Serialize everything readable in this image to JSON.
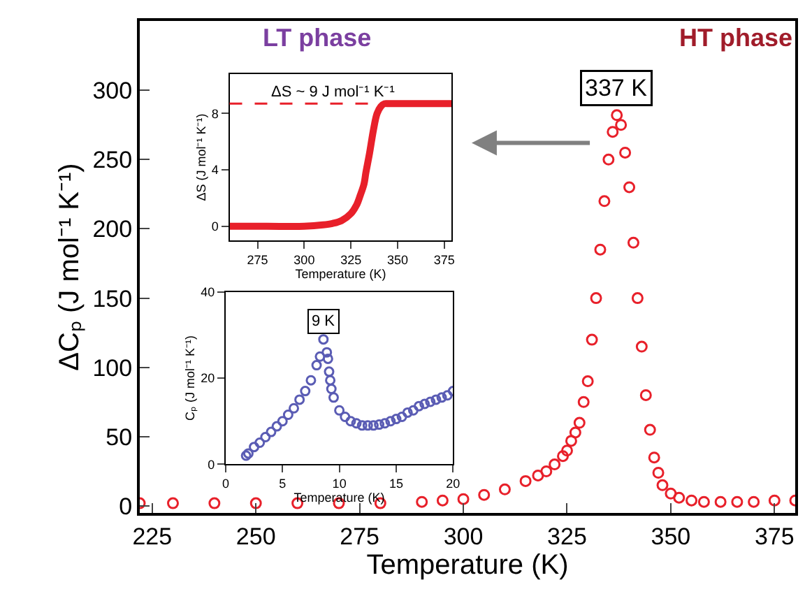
{
  "chart_data": [
    {
      "type": "scatter",
      "xlabel": "Temperature (K)",
      "ylabel": "ΔCₚ (J mol⁻¹ K⁻¹)",
      "annotations": [
        "LT phase",
        "HT phase",
        {
          "text": "337 K",
          "x": 337,
          "y": 282
        }
      ],
      "x": [
        222,
        230,
        240,
        250,
        260,
        270,
        280,
        290,
        295,
        300,
        305,
        310,
        315,
        318,
        320,
        322,
        324,
        325,
        326,
        327,
        328,
        329,
        330,
        331,
        332,
        333,
        334,
        335,
        336,
        337,
        338,
        339,
        340,
        341,
        342,
        343,
        344,
        345,
        346,
        347,
        348,
        350,
        352,
        355,
        358,
        362,
        366,
        370,
        375,
        380
      ],
      "series": [
        {
          "color": "#e8202a",
          "values": [
            2,
            2,
            2,
            2,
            2,
            2,
            2,
            3,
            4,
            5,
            8,
            12,
            18,
            22,
            25,
            30,
            36,
            40,
            47,
            53,
            60,
            75,
            90,
            120,
            150,
            185,
            220,
            250,
            270,
            282,
            275,
            255,
            230,
            190,
            150,
            115,
            80,
            55,
            35,
            24,
            15,
            9,
            6,
            4,
            3,
            3,
            3,
            3,
            4,
            4
          ]
        }
      ],
      "xlim": [
        222,
        380
      ],
      "ylim": [
        -5,
        350
      ],
      "xticks": [
        225,
        250,
        275,
        300,
        325,
        350,
        375
      ],
      "yticks": [
        0,
        50,
        100,
        150,
        200,
        250,
        300
      ],
      "marker": "circle"
    },
    {
      "type": "line",
      "xlabel": "Temperature (K)",
      "ylabel": "ΔS (J mol⁻¹ K⁻¹)",
      "annotations": [
        "ΔS ~ 9 J mol⁻¹ K⁻¹"
      ],
      "x": [
        260,
        280,
        300,
        310,
        315,
        320,
        325,
        328,
        330,
        332,
        333,
        335,
        337,
        339,
        341,
        343,
        345,
        350,
        360,
        379
      ],
      "series": [
        {
          "color": "#e8202a",
          "values": [
            0,
            0,
            0,
            0.1,
            0.2,
            0.4,
            0.9,
            1.5,
            2.2,
            3.0,
            3.8,
            5.2,
            6.8,
            8.0,
            8.5,
            8.7,
            8.7,
            8.7,
            8.7,
            8.7
          ]
        }
      ],
      "ref_lines": [
        {
          "axis": "y",
          "value": 8.7,
          "color": "#e8202a",
          "line_style": "dashed"
        }
      ],
      "xlim": [
        260,
        379
      ],
      "ylim": [
        -1,
        10.8
      ],
      "xticks": [
        275,
        300,
        325,
        350,
        375
      ],
      "yticks": [
        0,
        4,
        8
      ],
      "marker": "none"
    },
    {
      "type": "scatter",
      "xlabel": "Temperature (K)",
      "ylabel": "Cₚ (J mol⁻¹ K⁻¹)",
      "annotations": [
        {
          "text": "9 K",
          "x": 8.6,
          "y": 29
        }
      ],
      "x": [
        1.8,
        2,
        2.5,
        3,
        3.5,
        4,
        4.5,
        5,
        5.5,
        6,
        6.5,
        7,
        7.5,
        8,
        8.3,
        8.6,
        8.9,
        9.0,
        9.1,
        9.2,
        9.3,
        9.5,
        10,
        10.5,
        11,
        11.5,
        12,
        12.5,
        13,
        13.5,
        14,
        14.5,
        15,
        15.5,
        16,
        16.5,
        17,
        17.5,
        18,
        18.5,
        19,
        19.5,
        20
      ],
      "series": [
        {
          "color": "#5a5cb4",
          "values": [
            2,
            2.5,
            4,
            5,
            6.3,
            7.5,
            8.8,
            10,
            11.5,
            13,
            15,
            17,
            19.5,
            23,
            25,
            29,
            26,
            24.5,
            21.5,
            19.5,
            17.5,
            15.5,
            12.5,
            11,
            10,
            9.5,
            9,
            9,
            9,
            9.2,
            9.5,
            10,
            10.5,
            11,
            12,
            12.5,
            13.5,
            14,
            14.5,
            15,
            15.5,
            16,
            17
          ]
        }
      ],
      "xlim": [
        0,
        20
      ],
      "ylim": [
        0,
        40
      ],
      "xticks": [
        0,
        5,
        10,
        15,
        20
      ],
      "yticks": [
        0,
        20,
        40
      ],
      "marker": "circle"
    }
  ]
}
